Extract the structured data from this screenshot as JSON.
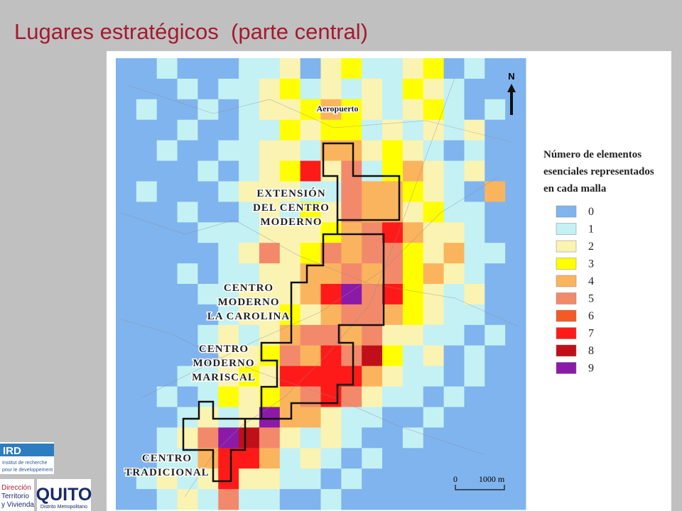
{
  "title": "Lugares estratégicos  (parte central)",
  "map": {
    "north": "N",
    "scale": {
      "start": "0",
      "end": "1000 m"
    },
    "labels": [
      {
        "lines": [
          "Aeropuerto"
        ]
      },
      {
        "lines": [
          "EXTENSIÓN",
          "DEL CENTRO",
          "MODERNO"
        ]
      },
      {
        "lines": [
          "CENTRO",
          "MODERNO",
          "LA CAROLINA"
        ]
      },
      {
        "lines": [
          "CENTRO",
          "MODERNO",
          "MARISCAL"
        ]
      },
      {
        "lines": [
          "CENTRO",
          "TRADICIONAL"
        ]
      }
    ],
    "grid": [
      [
        0,
        0,
        1,
        0,
        0,
        0,
        1,
        1,
        2,
        0,
        2,
        3,
        1,
        1,
        2,
        3,
        0,
        1,
        0,
        0
      ],
      [
        0,
        0,
        0,
        1,
        0,
        1,
        1,
        2,
        3,
        1,
        2,
        1,
        2,
        1,
        3,
        2,
        1,
        0,
        0,
        0
      ],
      [
        0,
        1,
        0,
        0,
        1,
        0,
        1,
        2,
        2,
        3,
        4,
        3,
        2,
        1,
        2,
        3,
        1,
        0,
        1,
        0
      ],
      [
        0,
        0,
        0,
        1,
        0,
        0,
        1,
        1,
        3,
        2,
        3,
        3,
        1,
        2,
        1,
        2,
        1,
        2,
        0,
        0
      ],
      [
        0,
        0,
        1,
        0,
        0,
        1,
        1,
        2,
        2,
        1,
        4,
        4,
        2,
        3,
        2,
        1,
        0,
        1,
        0,
        0
      ],
      [
        0,
        0,
        0,
        0,
        1,
        0,
        1,
        2,
        3,
        7,
        2,
        5,
        1,
        3,
        4,
        2,
        1,
        2,
        0,
        0
      ],
      [
        0,
        1,
        0,
        0,
        0,
        1,
        2,
        2,
        2,
        1,
        1,
        5,
        4,
        4,
        3,
        2,
        1,
        0,
        4,
        0
      ],
      [
        0,
        0,
        0,
        1,
        0,
        0,
        1,
        2,
        1,
        3,
        2,
        5,
        4,
        4,
        2,
        3,
        1,
        1,
        0,
        0
      ],
      [
        0,
        0,
        0,
        0,
        1,
        1,
        1,
        2,
        2,
        2,
        3,
        4,
        5,
        7,
        4,
        2,
        2,
        1,
        0,
        0
      ],
      [
        0,
        0,
        0,
        0,
        0,
        1,
        2,
        5,
        2,
        3,
        5,
        4,
        5,
        5,
        3,
        2,
        4,
        1,
        1,
        0
      ],
      [
        0,
        0,
        0,
        1,
        0,
        1,
        1,
        2,
        2,
        4,
        4,
        5,
        4,
        5,
        3,
        4,
        2,
        1,
        0,
        0
      ],
      [
        0,
        0,
        0,
        0,
        1,
        1,
        2,
        2,
        2,
        4,
        7,
        9,
        5,
        7,
        3,
        2,
        1,
        2,
        0,
        0
      ],
      [
        0,
        0,
        0,
        0,
        0,
        1,
        2,
        2,
        3,
        2,
        4,
        5,
        5,
        4,
        3,
        2,
        1,
        1,
        0,
        0
      ],
      [
        0,
        0,
        0,
        0,
        1,
        2,
        1,
        2,
        4,
        5,
        5,
        4,
        5,
        2,
        2,
        1,
        1,
        0,
        1,
        0
      ],
      [
        0,
        0,
        0,
        0,
        0,
        2,
        2,
        3,
        5,
        4,
        7,
        5,
        8,
        3,
        1,
        2,
        0,
        1,
        0,
        0
      ],
      [
        0,
        0,
        0,
        1,
        1,
        2,
        3,
        2,
        7,
        7,
        7,
        7,
        4,
        2,
        1,
        1,
        0,
        1,
        0,
        0
      ],
      [
        0,
        0,
        1,
        0,
        1,
        3,
        2,
        3,
        4,
        5,
        7,
        5,
        2,
        1,
        1,
        0,
        1,
        0,
        0,
        0
      ],
      [
        0,
        0,
        0,
        1,
        2,
        1,
        2,
        9,
        4,
        4,
        2,
        1,
        1,
        0,
        0,
        1,
        0,
        0,
        0,
        0
      ],
      [
        0,
        0,
        1,
        2,
        5,
        9,
        8,
        5,
        2,
        1,
        2,
        1,
        0,
        0,
        1,
        0,
        0,
        0,
        0,
        0
      ],
      [
        0,
        0,
        1,
        1,
        4,
        7,
        7,
        4,
        1,
        2,
        1,
        0,
        1,
        0,
        0,
        0,
        0,
        0,
        0,
        0
      ],
      [
        0,
        1,
        2,
        1,
        2,
        7,
        2,
        2,
        1,
        1,
        0,
        1,
        0,
        0,
        0,
        0,
        0,
        0,
        0,
        0
      ],
      [
        0,
        0,
        1,
        2,
        1,
        5,
        1,
        1,
        0,
        0,
        1,
        0,
        0,
        0,
        0,
        0,
        0,
        0,
        0,
        0
      ]
    ]
  },
  "legend": {
    "title": [
      "Número de elementos",
      "esenciales representados",
      "en cada malla"
    ],
    "items": [
      {
        "value": 0,
        "color": "#80b4ee"
      },
      {
        "value": 1,
        "color": "#c4f1f4"
      },
      {
        "value": 2,
        "color": "#fbf3b2"
      },
      {
        "value": 3,
        "color": "#ffff00"
      },
      {
        "value": 4,
        "color": "#fbb45e"
      },
      {
        "value": 5,
        "color": "#f3896b"
      },
      {
        "value": 6,
        "color": "#f45a28"
      },
      {
        "value": 7,
        "color": "#ff1a1a"
      },
      {
        "value": 8,
        "color": "#c00f18"
      },
      {
        "value": 9,
        "color": "#8c1aa8"
      }
    ]
  },
  "logos": {
    "ird": {
      "name": "IRD",
      "text": [
        "Institut de recherche",
        "pour le developpement"
      ]
    },
    "direccion": [
      "Dirección",
      "Territorio",
      "y Vivienda"
    ],
    "quito": {
      "name": "QUITO",
      "text": "Distrito Metropolitano"
    }
  }
}
